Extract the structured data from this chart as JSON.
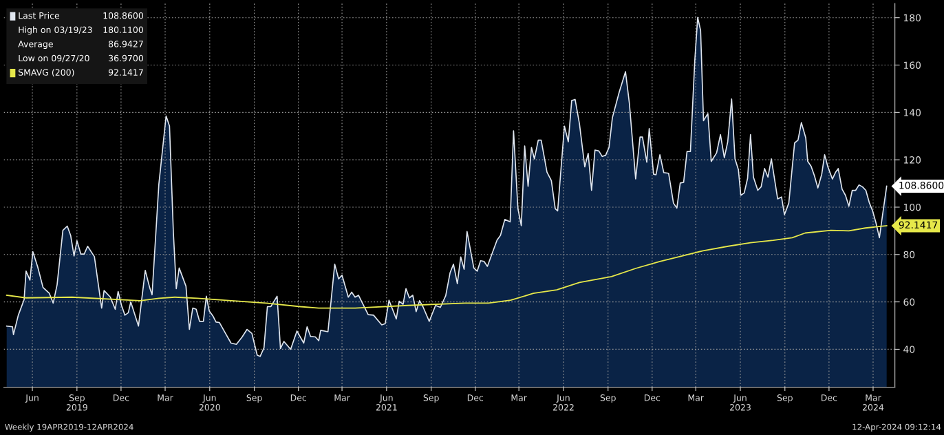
{
  "chart_data": {
    "type": "area",
    "xlim": [
      "2019-04-17",
      "2024-04-29"
    ],
    "ylim": [
      24,
      186
    ],
    "yticks": [
      40,
      60,
      80,
      100,
      120,
      140,
      160,
      180
    ],
    "xticks": [
      {
        "value": "2019-06-15",
        "label": "Jun"
      },
      {
        "value": "2019-09-15",
        "label": "Sep\n2019"
      },
      {
        "value": "2019-12-15",
        "label": "Dec"
      },
      {
        "value": "2020-03-15",
        "label": "Mar"
      },
      {
        "value": "2020-06-15",
        "label": "Jun\n2020"
      },
      {
        "value": "2020-09-15",
        "label": "Sep"
      },
      {
        "value": "2020-12-15",
        "label": "Dec"
      },
      {
        "value": "2021-03-15",
        "label": "Mar"
      },
      {
        "value": "2021-06-15",
        "label": "Jun\n2021"
      },
      {
        "value": "2021-09-15",
        "label": "Sep"
      },
      {
        "value": "2021-12-15",
        "label": "Dec"
      },
      {
        "value": "2022-03-15",
        "label": "Mar"
      },
      {
        "value": "2022-06-15",
        "label": "Jun\n2022"
      },
      {
        "value": "2022-09-15",
        "label": "Sep"
      },
      {
        "value": "2022-12-15",
        "label": "Dec"
      },
      {
        "value": "2023-03-15",
        "label": "Mar"
      },
      {
        "value": "2023-06-15",
        "label": "Jun\n2023"
      },
      {
        "value": "2023-09-15",
        "label": "Sep"
      },
      {
        "value": "2023-12-15",
        "label": "Dec"
      },
      {
        "value": "2024-03-15",
        "label": "Mar\n2024"
      }
    ],
    "grid": true,
    "legend": "top left",
    "series": [
      {
        "name": "Last Price",
        "color": "#dfe5ee",
        "x": [
          "2019-04-23",
          "2019-05-05",
          "2019-05-07",
          "2019-05-17",
          "2019-05-29",
          "2019-06-02",
          "2019-06-10",
          "2019-06-16",
          "2019-06-26",
          "2019-07-07",
          "2019-07-20",
          "2019-07-28",
          "2019-08-05",
          "2019-08-17",
          "2019-08-26",
          "2019-09-02",
          "2019-09-09",
          "2019-09-15",
          "2019-09-23",
          "2019-09-30",
          "2019-10-07",
          "2019-10-21",
          "2019-11-05",
          "2019-11-10",
          "2019-11-23",
          "2019-12-03",
          "2019-12-09",
          "2019-12-16",
          "2019-12-23",
          "2019-12-30",
          "2020-01-04",
          "2020-01-20",
          "2020-02-03",
          "2020-02-12",
          "2020-02-17",
          "2020-03-02",
          "2020-03-17",
          "2020-03-24",
          "2020-04-01",
          "2020-04-07",
          "2020-04-13",
          "2020-04-27",
          "2020-05-04",
          "2020-05-11",
          "2020-05-18",
          "2020-05-25",
          "2020-06-02",
          "2020-06-08",
          "2020-06-14",
          "2020-06-22",
          "2020-06-28",
          "2020-07-05",
          "2020-07-19",
          "2020-07-29",
          "2020-08-09",
          "2020-08-21",
          "2020-08-31",
          "2020-09-10",
          "2020-09-21",
          "2020-09-27",
          "2020-10-05",
          "2020-10-12",
          "2020-10-19",
          "2020-11-01",
          "2020-11-08",
          "2020-11-15",
          "2020-11-29",
          "2020-12-12",
          "2020-12-26",
          "2021-01-02",
          "2021-01-09",
          "2021-01-19",
          "2021-01-26",
          "2021-01-30",
          "2021-02-14",
          "2021-02-28",
          "2021-03-08",
          "2021-03-15",
          "2021-03-28",
          "2021-04-04",
          "2021-04-11",
          "2021-04-18",
          "2021-05-08",
          "2021-05-19",
          "2021-06-05",
          "2021-06-12",
          "2021-06-20",
          "2021-07-05",
          "2021-07-11",
          "2021-07-19",
          "2021-07-25",
          "2021-08-01",
          "2021-08-08",
          "2021-08-15",
          "2021-08-22",
          "2021-08-29",
          "2021-09-11",
          "2021-09-24",
          "2021-10-04",
          "2021-10-15",
          "2021-10-24",
          "2021-10-31",
          "2021-11-08",
          "2021-11-15",
          "2021-11-22",
          "2021-11-28",
          "2021-12-12",
          "2021-12-19",
          "2021-12-26",
          "2022-01-02",
          "2022-01-09",
          "2022-01-29",
          "2022-02-05",
          "2022-02-14",
          "2022-02-25",
          "2022-03-04",
          "2022-03-13",
          "2022-03-20",
          "2022-03-27",
          "2022-04-03",
          "2022-04-10",
          "2022-04-16",
          "2022-04-24",
          "2022-04-30",
          "2022-05-12",
          "2022-05-21",
          "2022-05-29",
          "2022-06-03",
          "2022-06-17",
          "2022-06-25",
          "2022-07-02",
          "2022-07-09",
          "2022-07-18",
          "2022-07-29",
          "2022-08-05",
          "2022-08-12",
          "2022-08-19",
          "2022-08-27",
          "2022-09-03",
          "2022-09-10",
          "2022-09-17",
          "2022-09-24",
          "2022-10-08",
          "2022-10-21",
          "2022-10-29",
          "2022-11-11",
          "2022-11-20",
          "2022-11-25",
          "2022-12-04",
          "2022-12-09",
          "2022-12-18",
          "2022-12-23",
          "2022-12-31",
          "2023-01-08",
          "2023-01-18",
          "2023-01-28",
          "2023-02-04",
          "2023-02-11",
          "2023-02-18",
          "2023-02-25",
          "2023-03-04",
          "2023-03-13",
          "2023-03-19",
          "2023-03-25",
          "2023-03-31",
          "2023-04-09",
          "2023-04-16",
          "2023-04-27",
          "2023-05-05",
          "2023-05-13",
          "2023-05-20",
          "2023-05-28",
          "2023-06-04",
          "2023-06-11",
          "2023-06-16",
          "2023-06-23",
          "2023-06-30",
          "2023-07-06",
          "2023-07-12",
          "2023-07-21",
          "2023-07-28",
          "2023-08-04",
          "2023-08-11",
          "2023-08-18",
          "2023-08-31",
          "2023-09-08",
          "2023-09-14",
          "2023-09-23",
          "2023-10-05",
          "2023-10-12",
          "2023-10-19",
          "2023-10-28",
          "2023-11-01",
          "2023-11-08",
          "2023-11-15",
          "2023-11-22",
          "2023-11-30",
          "2023-12-06",
          "2023-12-13",
          "2023-12-22",
          "2023-12-29",
          "2024-01-03",
          "2024-01-11",
          "2024-01-18",
          "2024-01-25",
          "2024-02-01",
          "2024-02-08",
          "2024-02-15",
          "2024-02-22",
          "2024-02-29",
          "2024-03-07",
          "2024-03-14",
          "2024-03-21",
          "2024-03-28",
          "2024-04-04",
          "2024-04-12"
        ],
        "values": [
          49.8,
          49.5,
          46.2,
          54.4,
          61,
          73,
          69.2,
          81.2,
          74.8,
          66.1,
          63.6,
          59.5,
          67.2,
          90.2,
          92,
          88.1,
          79.4,
          85.8,
          80.2,
          80.2,
          83.5,
          79.1,
          57.4,
          64.8,
          62,
          56.9,
          64.4,
          58.5,
          54.4,
          55.4,
          60,
          49.8,
          73.3,
          66.1,
          63,
          109.6,
          138.5,
          134.2,
          89.2,
          65.6,
          74.3,
          66.6,
          48.4,
          57.4,
          56.9,
          51.8,
          51.8,
          62.4,
          56.2,
          53.9,
          51.5,
          51.3,
          46.2,
          42.6,
          42.1,
          45.2,
          48.4,
          46.7,
          37.5,
          36.97,
          40.6,
          58,
          58,
          62.4,
          40.3,
          43.3,
          40,
          47.7,
          42.6,
          49.5,
          45.4,
          45.2,
          43.6,
          48,
          47.4,
          75.9,
          69.7,
          71.3,
          62,
          64.1,
          62,
          62.8,
          54.6,
          54.4,
          50.3,
          50.8,
          60.7,
          52.8,
          60.3,
          59,
          65.6,
          61.7,
          62.8,
          55.9,
          60.5,
          58,
          51.8,
          58.5,
          57.7,
          62.6,
          72.3,
          75.9,
          67.7,
          79,
          73.8,
          89.7,
          74.3,
          73,
          77.4,
          77.1,
          75,
          86.1,
          88.1,
          94.8,
          93.8,
          132.2,
          99.4,
          92.2,
          125.8,
          108.8,
          125.2,
          120.4,
          128.3,
          128.3,
          114.8,
          111.2,
          99.4,
          98.4,
          134.2,
          127.6,
          145,
          145.5,
          135.2,
          117,
          122.7,
          107.1,
          124.1,
          123.7,
          121.4,
          121.9,
          125.2,
          137.8,
          148.5,
          157.2,
          143.9,
          111.9,
          129.6,
          129.6,
          119,
          133.2,
          113.9,
          113.7,
          122.1,
          114.6,
          114.3,
          101.7,
          99.6,
          110.2,
          110.5,
          123.5,
          123.5,
          161.8,
          180.11,
          174.6,
          136.5,
          139.5,
          119.3,
          122.9,
          130.6,
          120.9,
          127.6,
          145.7,
          120.4,
          115.8,
          105,
          106,
          112.2,
          130.6,
          112.7,
          107.1,
          108.6,
          116.3,
          112.7,
          120.4,
          103.5,
          104.3,
          96.8,
          101.7,
          127.1,
          128.3,
          135.7,
          129.3,
          119.4,
          117.3,
          113.2,
          108.1,
          113.9,
          122.1,
          116.8,
          111.9,
          114.9,
          116.3,
          107.6,
          105,
          100.4,
          107.1,
          107.1,
          109.4,
          108.6,
          107.1,
          102,
          98.4,
          93.3,
          87.1,
          97.4,
          108.86
        ]
      },
      {
        "name": "SMAVG (200)",
        "type": "line",
        "color": "#e6e84a",
        "x": [
          "2019-04-23",
          "2019-06-02",
          "2019-09-05",
          "2020-01-24",
          "2020-03-02",
          "2020-04-04",
          "2020-05-21",
          "2020-07-30",
          "2020-10-09",
          "2020-12-19",
          "2021-01-26",
          "2021-04-11",
          "2021-07-29",
          "2021-11-24",
          "2022-01-11",
          "2022-02-26",
          "2022-04-14",
          "2022-06-01",
          "2022-07-18",
          "2022-09-22",
          "2022-11-12",
          "2022-12-31",
          "2023-02-15",
          "2023-03-30",
          "2023-05-21",
          "2023-07-06",
          "2023-08-22",
          "2023-09-30",
          "2023-10-27",
          "2023-12-19",
          "2024-01-25",
          "2024-02-28",
          "2024-04-12"
        ],
        "values": [
          62.8,
          61.7,
          62,
          60.5,
          61.5,
          62,
          61.5,
          60.5,
          59.5,
          58,
          57.4,
          57.4,
          58.5,
          59.5,
          59.5,
          60.7,
          63.6,
          65.1,
          68.2,
          70.7,
          74.2,
          77.1,
          79.4,
          81.6,
          83.5,
          85,
          86,
          87.1,
          89.1,
          90.2,
          90,
          91.2,
          92.1417
        ]
      }
    ],
    "annotations": [
      {
        "text": "108.8600",
        "x": "2024-04-12",
        "y": 108.86
      },
      {
        "text": "92.1417",
        "x": "2024-04-12",
        "y": 92.1417
      },
      "High on 03/19/23 180.1100",
      "Average 86.9427",
      "Low on 09/27/20 36.9700",
      "Weekly 19APR2019-12APR2024",
      "12-Apr-2024 09:12:14"
    ]
  }
}
